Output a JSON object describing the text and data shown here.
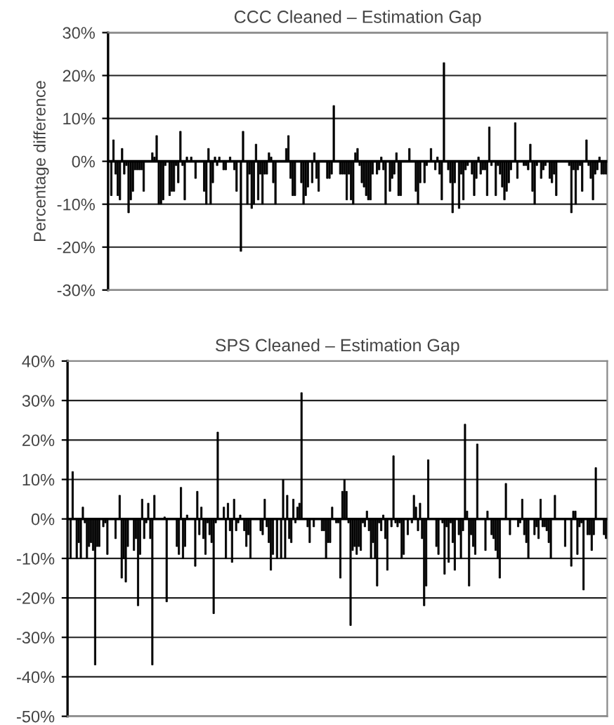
{
  "chart_data": [
    {
      "type": "bar",
      "title": "CCC Cleaned – Estimation Gap",
      "ylabel": "Percentage difference",
      "color": "#000000",
      "grid": "y",
      "ylim": [
        -30,
        30
      ],
      "yticks": [
        {
          "value": -30,
          "label": "-30%"
        },
        {
          "value": -20,
          "label": "-20%"
        },
        {
          "value": -10,
          "label": "-10%"
        },
        {
          "value": 0,
          "label": "0%"
        },
        {
          "value": 10,
          "label": "10%"
        },
        {
          "value": 20,
          "label": "20%"
        },
        {
          "value": 30,
          "label": "30%"
        }
      ],
      "categories": [
        null,
        null,
        null,
        null,
        null,
        null,
        null,
        null,
        null,
        null,
        null,
        null,
        null,
        null,
        null,
        null,
        null,
        null,
        null,
        null,
        null,
        null,
        null,
        null,
        null,
        null,
        null,
        null,
        null,
        null,
        null,
        null,
        null,
        null,
        null,
        null,
        null,
        null,
        null,
        null,
        null,
        null,
        null,
        null,
        null,
        null,
        null,
        null,
        null,
        null,
        null,
        null,
        null,
        null,
        null,
        null,
        null,
        null,
        null,
        null,
        null,
        null,
        null,
        null,
        null,
        null,
        null,
        null,
        null,
        null,
        null,
        null,
        null,
        null,
        null,
        null,
        null,
        null,
        null,
        null,
        null,
        null,
        null,
        null,
        null,
        null,
        null,
        null,
        null,
        null,
        null,
        null,
        null,
        null,
        null,
        null,
        null,
        null,
        null,
        null,
        null,
        null,
        null,
        null,
        null,
        null,
        null,
        null,
        null,
        null,
        null,
        null,
        null,
        null,
        null,
        null,
        null,
        null,
        null,
        null,
        null,
        null,
        null,
        null,
        null,
        null,
        null,
        null,
        null,
        null,
        null,
        null,
        null,
        null,
        null,
        null,
        null,
        null,
        null,
        null,
        null,
        null,
        null,
        null,
        null,
        null,
        null,
        null,
        null,
        null,
        null,
        null,
        null,
        null,
        null,
        null,
        null,
        null,
        null,
        null,
        null,
        null,
        null,
        null,
        null,
        null,
        null,
        null,
        null,
        null,
        null,
        null,
        null,
        null,
        null,
        null,
        null,
        null,
        null,
        null,
        null,
        null,
        null,
        null,
        null,
        null,
        null,
        null,
        null,
        null,
        null,
        null,
        null,
        null,
        null,
        null,
        null,
        null,
        null,
        null,
        null,
        null,
        null,
        null,
        null,
        null,
        null,
        null,
        null,
        null,
        null,
        null,
        null,
        null,
        null,
        null,
        null,
        null,
        null,
        null,
        null,
        null,
        null,
        null,
        null,
        null,
        null,
        null,
        null,
        null
      ],
      "values": [
        -8,
        5,
        -3,
        -8,
        -9,
        3,
        -3,
        -1,
        -12,
        -9,
        -7,
        -2,
        -2,
        -2,
        -2,
        -7,
        0,
        0,
        0,
        2,
        1,
        6,
        -10,
        -10,
        -9,
        -1,
        0,
        -8,
        -7,
        -7,
        -1,
        -5,
        7,
        -1,
        -9,
        1,
        0,
        1,
        0,
        -4,
        0,
        0,
        0,
        -7,
        -10,
        3,
        -10,
        -5,
        1,
        -1,
        1,
        0,
        -2,
        -2,
        0,
        1,
        0,
        -2,
        -7,
        0,
        -21,
        7,
        0,
        -10,
        -3,
        -11,
        -10,
        4,
        -9,
        -3,
        -10,
        -3,
        -3,
        2,
        1,
        -5,
        -10,
        0,
        0,
        0,
        0,
        3,
        6,
        -4,
        -8,
        -8,
        0,
        0,
        -5,
        -10,
        -8,
        -6,
        0,
        -5,
        2,
        -4,
        -7,
        0,
        0,
        0,
        -4,
        -4,
        -3,
        13,
        0,
        0,
        -3,
        -3,
        -3,
        -9,
        -3,
        -9,
        -10,
        2,
        3,
        -1,
        -5,
        -6,
        -8,
        -9,
        -9,
        -3,
        0,
        -3,
        -2,
        1,
        -2,
        -10,
        0,
        -7,
        -4,
        -3,
        2,
        -8,
        -8,
        0,
        0,
        0,
        3,
        0,
        0,
        -7,
        -10,
        -5,
        0,
        -5,
        -1,
        0,
        3,
        0,
        -2,
        1,
        -3,
        -9,
        23,
        0,
        -2,
        -5,
        -12,
        -5,
        0,
        -11,
        -3,
        -9,
        -2,
        -1,
        0,
        -3,
        -8,
        -4,
        1,
        -3,
        -2,
        -2,
        -8,
        8,
        -1,
        0,
        -8,
        -1,
        -3,
        -6,
        -9,
        -7,
        -5,
        -2,
        0,
        9,
        -4,
        0,
        0,
        -1,
        -1,
        -2,
        4,
        -7,
        -10,
        -1,
        0,
        -4,
        -2,
        -1,
        0,
        -4,
        -5,
        -3,
        -8,
        0,
        0,
        0,
        0,
        0,
        -1,
        -12,
        -2,
        -10,
        -2,
        -1,
        -7,
        0,
        5,
        -1,
        -4,
        -9,
        -3,
        -2,
        1,
        -3,
        -3,
        -3
      ]
    },
    {
      "type": "bar",
      "title": "SPS Cleaned – Estimation Gap",
      "color": "#000000",
      "grid": "y",
      "ylim": [
        -50,
        40
      ],
      "yticks": [
        {
          "value": -50,
          "label": "-50%"
        },
        {
          "value": -40,
          "label": "-40%"
        },
        {
          "value": -30,
          "label": "-30%"
        },
        {
          "value": -20,
          "label": "-20%"
        },
        {
          "value": -10,
          "label": "-10%"
        },
        {
          "value": 0,
          "label": "0%"
        },
        {
          "value": 10,
          "label": "10%"
        },
        {
          "value": 20,
          "label": "20%"
        },
        {
          "value": 30,
          "label": "30%"
        },
        {
          "value": 40,
          "label": "40%"
        }
      ],
      "categories": [
        null,
        null,
        null,
        null,
        null,
        null,
        null,
        null,
        null,
        null,
        null,
        null,
        null,
        null,
        null,
        null,
        null,
        null,
        null,
        null,
        null,
        null,
        null,
        null,
        null,
        null,
        null,
        null,
        null,
        null,
        null,
        null,
        null,
        null,
        null,
        null,
        null,
        null,
        null,
        null,
        null,
        null,
        null,
        null,
        null,
        null,
        null,
        null,
        null,
        null,
        null,
        null,
        null,
        null,
        null,
        null,
        null,
        null,
        null,
        null,
        null,
        null,
        null,
        null,
        null,
        null,
        null,
        null,
        null,
        null,
        null,
        null,
        null,
        null,
        null,
        null,
        null,
        null,
        null,
        null,
        null,
        null,
        null,
        null,
        null,
        null,
        null,
        null,
        null,
        null,
        null,
        null,
        null,
        null,
        null,
        null,
        null,
        null,
        null,
        null,
        null,
        null,
        null,
        null,
        null,
        null,
        null,
        null,
        null,
        null,
        null,
        null,
        null,
        null,
        null,
        null,
        null,
        null,
        null,
        null,
        null,
        null,
        null,
        null,
        null,
        null,
        null,
        null,
        null,
        null,
        null,
        null,
        null,
        null,
        null,
        null,
        null,
        null,
        null,
        null,
        null,
        null,
        null,
        null,
        null,
        null,
        null,
        null,
        null,
        null,
        null,
        null,
        null,
        null,
        null,
        null,
        null,
        null,
        null,
        null,
        null,
        null,
        null,
        null,
        null,
        null,
        null,
        null,
        null,
        null,
        null,
        null,
        null,
        null,
        null,
        null,
        null,
        null,
        null,
        null,
        null,
        null,
        null,
        null,
        null,
        null,
        null,
        null,
        null,
        null,
        null,
        null,
        null,
        null,
        null,
        null,
        null,
        null,
        null,
        null,
        null,
        null,
        null,
        null,
        null,
        null,
        null,
        null,
        null,
        null,
        null,
        null,
        null,
        null,
        null,
        null,
        null,
        null,
        null,
        null,
        null,
        null,
        null,
        null,
        null,
        null,
        null,
        null,
        null,
        null,
        null,
        null,
        null,
        null,
        null,
        null,
        null,
        null,
        null,
        null,
        null,
        null,
        null,
        null,
        null,
        null,
        null,
        null,
        null,
        null,
        null,
        null,
        null,
        null,
        null,
        null,
        null,
        null,
        null,
        null,
        null,
        null,
        null
      ],
      "values": [
        -10,
        12,
        0,
        -10,
        -6,
        -10,
        3,
        -1,
        -10,
        -7,
        -6,
        -8,
        -37,
        -7,
        -7,
        0,
        -2,
        -1,
        -9,
        0,
        0,
        0,
        -5,
        0,
        6,
        -15,
        -10,
        -16,
        -7,
        0,
        0,
        -8,
        -5,
        -22,
        -9,
        5,
        -5,
        -1,
        4,
        -5,
        -37,
        6,
        0,
        0,
        0,
        0,
        0.5,
        -21,
        0,
        0,
        0,
        0,
        -7,
        -9,
        8,
        -10,
        -7,
        1,
        0,
        0,
        0,
        -12,
        7,
        -4,
        3,
        -5,
        -9,
        -1,
        -4,
        -6,
        -24,
        -1,
        22,
        0,
        0,
        3,
        -10,
        4,
        -3,
        -11,
        5,
        -3,
        -1,
        1,
        0,
        -3,
        -7,
        -4,
        -10,
        0,
        0,
        0,
        0,
        -3,
        -4,
        5,
        -2,
        -6,
        -13,
        -9,
        0,
        -10,
        0,
        -10,
        10,
        -10,
        6,
        -5,
        -6,
        5,
        -1,
        3,
        4,
        32,
        0,
        0,
        -2,
        -6,
        0,
        -2,
        0,
        0,
        0,
        -3,
        -3,
        -10,
        -6,
        -6,
        3,
        0,
        -1,
        -1,
        -15,
        7,
        10,
        7,
        -1,
        -27,
        -8,
        -7,
        -9,
        -7,
        -8,
        -1,
        -2,
        2,
        -3,
        -10,
        -6,
        -10,
        -17,
        -1,
        -3,
        1,
        -5,
        -13,
        0,
        -2,
        16,
        -1,
        -2,
        -1,
        -10,
        -9,
        0,
        -4,
        0,
        -1,
        6,
        3,
        -3,
        4,
        -5,
        -22,
        -17,
        15,
        0,
        0,
        0,
        -7,
        -9,
        0,
        -1,
        -14,
        -2,
        -11,
        -1,
        -6,
        -13,
        0,
        -4,
        -10,
        -3,
        24,
        2,
        -17,
        -4,
        -7,
        -9,
        19,
        0,
        0,
        0,
        -8,
        2,
        0,
        -4,
        -5,
        -8,
        -10,
        -15,
        0,
        0,
        9,
        0,
        -4,
        0,
        0,
        0,
        -2,
        -1,
        5,
        -4,
        -6,
        -10,
        0,
        0,
        -4,
        -2,
        -5,
        5,
        -2,
        -2,
        -3,
        -6,
        -10,
        0,
        6,
        0,
        0,
        0,
        0,
        -7,
        0,
        0,
        -12,
        2,
        2,
        -9,
        -2,
        -1,
        -18,
        0,
        -4,
        -4,
        -8,
        -4,
        13,
        0,
        0,
        0,
        -4,
        -5
      ]
    }
  ]
}
